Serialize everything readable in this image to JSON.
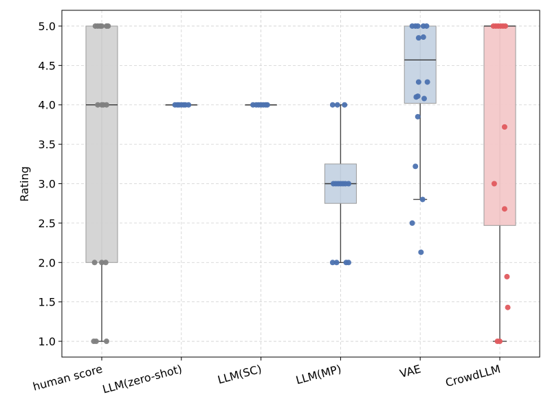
{
  "chart_data": {
    "type": "box",
    "title": "",
    "xlabel": "",
    "ylabel": "Rating",
    "ylim": [
      0.8,
      5.2
    ],
    "yticks": [
      "1.0",
      "1.5",
      "2.0",
      "2.5",
      "3.0",
      "3.5",
      "4.0",
      "4.5",
      "5.0"
    ],
    "grid": true,
    "categories": [
      "human score",
      "LLM(zero-shot)",
      "LLM(SC)",
      "LLM(MP)",
      "VAE",
      "CrowdLLM"
    ],
    "series": [
      {
        "category": "human score",
        "color": "#808080",
        "box_fill": "#d3d3d3",
        "q1": 2.0,
        "median": 4.0,
        "q3": 5.0,
        "whisker_low": 1.0,
        "whisker_high": 5.0,
        "points": [
          {
            "jitter": -0.08,
            "y": 5.0
          },
          {
            "jitter": -0.05,
            "y": 5.0
          },
          {
            "jitter": -0.02,
            "y": 5.0
          },
          {
            "jitter": 0.0,
            "y": 5.0
          },
          {
            "jitter": 0.06,
            "y": 5.0
          },
          {
            "jitter": 0.08,
            "y": 5.0
          },
          {
            "jitter": -0.05,
            "y": 4.0
          },
          {
            "jitter": 0.0,
            "y": 4.0
          },
          {
            "jitter": 0.02,
            "y": 4.0
          },
          {
            "jitter": 0.06,
            "y": 4.0
          },
          {
            "jitter": -0.09,
            "y": 2.0
          },
          {
            "jitter": 0.0,
            "y": 2.0
          },
          {
            "jitter": 0.05,
            "y": 2.0
          },
          {
            "jitter": -0.1,
            "y": 1.0
          },
          {
            "jitter": -0.07,
            "y": 1.0
          },
          {
            "jitter": 0.06,
            "y": 1.0
          }
        ]
      },
      {
        "category": "LLM(zero-shot)",
        "color": "#4c72b0",
        "box_fill": "#c5d3e3",
        "q1": 4.0,
        "median": 4.0,
        "q3": 4.0,
        "whisker_low": 4.0,
        "whisker_high": 4.0,
        "points": [
          {
            "jitter": -0.08,
            "y": 4.0
          },
          {
            "jitter": -0.05,
            "y": 4.0
          },
          {
            "jitter": -0.03,
            "y": 4.0
          },
          {
            "jitter": 0.0,
            "y": 4.0
          },
          {
            "jitter": 0.03,
            "y": 4.0
          },
          {
            "jitter": 0.05,
            "y": 4.0
          },
          {
            "jitter": 0.09,
            "y": 4.0
          }
        ]
      },
      {
        "category": "LLM(SC)",
        "color": "#4c72b0",
        "box_fill": "#c5d3e3",
        "q1": 4.0,
        "median": 4.0,
        "q3": 4.0,
        "whisker_low": 4.0,
        "whisker_high": 4.0,
        "points": [
          {
            "jitter": -0.1,
            "y": 4.0
          },
          {
            "jitter": -0.06,
            "y": 4.0
          },
          {
            "jitter": -0.03,
            "y": 4.0
          },
          {
            "jitter": 0.0,
            "y": 4.0
          },
          {
            "jitter": 0.03,
            "y": 4.0
          },
          {
            "jitter": 0.06,
            "y": 4.0
          },
          {
            "jitter": 0.08,
            "y": 4.0
          }
        ]
      },
      {
        "category": "LLM(MP)",
        "color": "#4c72b0",
        "box_fill": "#c5d3e3",
        "q1": 2.75,
        "median": 3.0,
        "q3": 3.25,
        "whisker_low": 2.0,
        "whisker_high": 4.0,
        "points": [
          {
            "jitter": -0.1,
            "y": 4.0
          },
          {
            "jitter": -0.04,
            "y": 4.0
          },
          {
            "jitter": 0.05,
            "y": 4.0
          },
          {
            "jitter": -0.09,
            "y": 3.0
          },
          {
            "jitter": -0.06,
            "y": 3.0
          },
          {
            "jitter": -0.03,
            "y": 3.0
          },
          {
            "jitter": 0.0,
            "y": 3.0
          },
          {
            "jitter": 0.03,
            "y": 3.0
          },
          {
            "jitter": 0.06,
            "y": 3.0
          },
          {
            "jitter": 0.1,
            "y": 3.0
          },
          {
            "jitter": -0.1,
            "y": 2.0
          },
          {
            "jitter": -0.05,
            "y": 2.0
          },
          {
            "jitter": 0.07,
            "y": 2.0
          },
          {
            "jitter": 0.1,
            "y": 2.0
          }
        ]
      },
      {
        "category": "VAE",
        "color": "#4c72b0",
        "box_fill": "#c5d3e3",
        "q1": 4.02,
        "median": 4.57,
        "q3": 5.0,
        "whisker_low": 2.8,
        "whisker_high": 5.0,
        "points": [
          {
            "jitter": -0.1,
            "y": 5.0
          },
          {
            "jitter": -0.06,
            "y": 5.0
          },
          {
            "jitter": -0.03,
            "y": 5.0
          },
          {
            "jitter": 0.04,
            "y": 5.0
          },
          {
            "jitter": 0.08,
            "y": 5.0
          },
          {
            "jitter": -0.02,
            "y": 4.85
          },
          {
            "jitter": 0.04,
            "y": 4.86
          },
          {
            "jitter": -0.02,
            "y": 4.29
          },
          {
            "jitter": 0.09,
            "y": 4.29
          },
          {
            "jitter": -0.05,
            "y": 4.1
          },
          {
            "jitter": -0.03,
            "y": 4.11
          },
          {
            "jitter": 0.05,
            "y": 4.08
          },
          {
            "jitter": -0.03,
            "y": 3.85
          },
          {
            "jitter": -0.06,
            "y": 3.22
          },
          {
            "jitter": 0.03,
            "y": 2.8
          },
          {
            "jitter": -0.1,
            "y": 2.5
          },
          {
            "jitter": 0.01,
            "y": 2.13
          }
        ]
      },
      {
        "category": "CrowdLLM",
        "color": "#e05a5e",
        "box_fill": "#f3c8c9",
        "q1": 2.47,
        "median": 5.0,
        "q3": 5.0,
        "whisker_low": 1.0,
        "whisker_high": 5.0,
        "points": [
          {
            "jitter": -0.08,
            "y": 5.0
          },
          {
            "jitter": -0.05,
            "y": 5.0
          },
          {
            "jitter": -0.02,
            "y": 5.0
          },
          {
            "jitter": 0.01,
            "y": 5.0
          },
          {
            "jitter": 0.04,
            "y": 5.0
          },
          {
            "jitter": 0.07,
            "y": 5.0
          },
          {
            "jitter": 0.06,
            "y": 3.72
          },
          {
            "jitter": -0.07,
            "y": 3.0
          },
          {
            "jitter": 0.06,
            "y": 2.68
          },
          {
            "jitter": 0.09,
            "y": 1.82
          },
          {
            "jitter": 0.1,
            "y": 1.43
          },
          {
            "jitter": -0.03,
            "y": 1.0
          },
          {
            "jitter": 0.0,
            "y": 1.0
          }
        ]
      }
    ]
  }
}
